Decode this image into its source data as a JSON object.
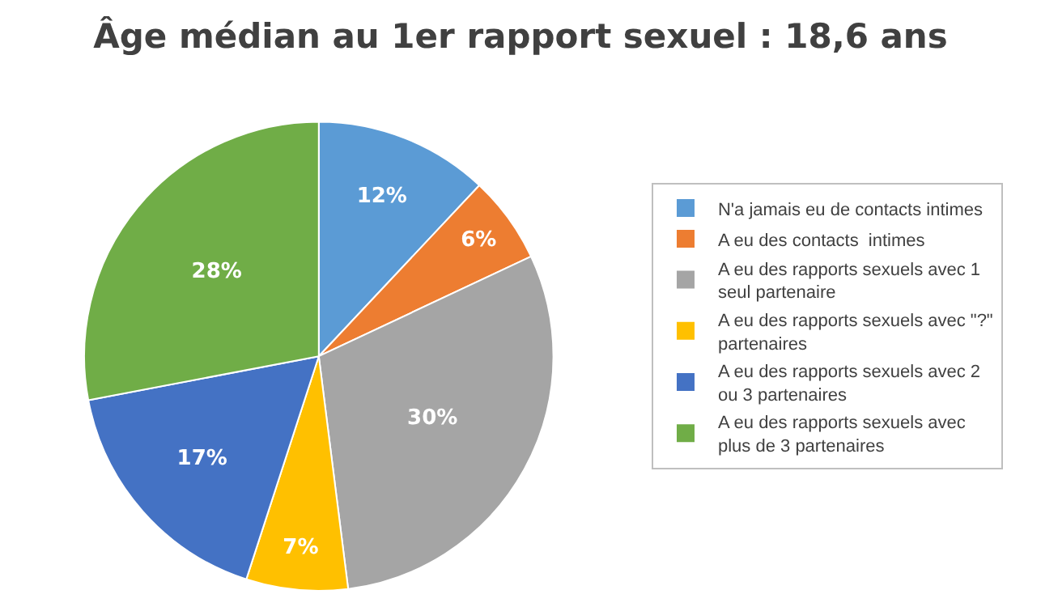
{
  "chart_data": {
    "type": "pie",
    "title": "Âge médian au 1er rapport sexuel : 18,6 ans",
    "categories": [
      "N'a jamais eu de contacts intimes",
      "A eu des contacts  intimes",
      "A eu des rapports sexuels avec 1 seul partenaire",
      "A eu des rapports sexuels avec \"?\" partenaires",
      "A eu des rapports sexuels avec 2 ou 3 partenaires",
      "A eu des rapports sexuels avec plus de 3 partenaires"
    ],
    "values": [
      12,
      6,
      30,
      7,
      17,
      28
    ],
    "colors": [
      "#5b9bd5",
      "#ed7d31",
      "#a5a5a5",
      "#ffc000",
      "#4472c4",
      "#70ad47"
    ],
    "value_labels": [
      "12%",
      "6%",
      "30%",
      "7%",
      "17%",
      "28%"
    ],
    "legend": "right"
  }
}
